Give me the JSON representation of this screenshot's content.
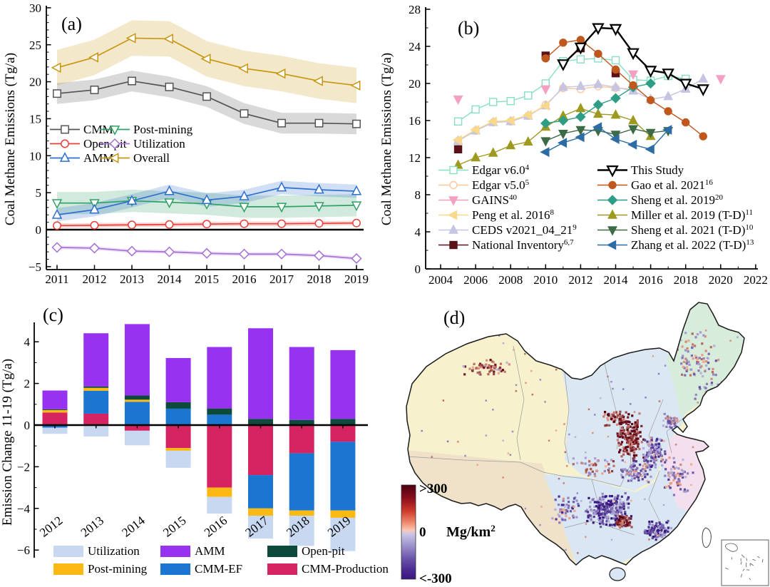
{
  "figure": {
    "panel_labels": [
      "(a)",
      "(b)",
      "(c)",
      "(d)"
    ]
  },
  "chart_data": [
    {
      "panel": "(a)",
      "type": "line",
      "ylabel": "Coal Methane Emissions (Tg/a)",
      "x": [
        2011,
        2012,
        2013,
        2014,
        2015,
        2016,
        2017,
        2018,
        2019
      ],
      "yticks": [
        30,
        25,
        20,
        15,
        10,
        5,
        0,
        -5
      ],
      "ylim": [
        -5,
        30
      ],
      "legend_rows": [
        [
          "CMM",
          "Post-mining"
        ],
        [
          "Open-pit",
          "Utilization"
        ],
        [
          "AMM",
          "Overall"
        ]
      ],
      "series": [
        {
          "name": "Overall",
          "color": "#c8950f",
          "marker": "triangle-left",
          "band": 2.4,
          "values": [
            21.9,
            23.3,
            25.9,
            25.8,
            23.1,
            21.8,
            21.1,
            20.1,
            19.5
          ]
        },
        {
          "name": "CMM",
          "color": "#545454",
          "marker": "square",
          "band": 1.4,
          "values": [
            18.4,
            18.9,
            20.1,
            19.3,
            18.0,
            15.7,
            14.4,
            14.4,
            14.3
          ]
        },
        {
          "name": "Post-mining",
          "color": "#2ea164",
          "marker": "triangle-down",
          "band": 1.5,
          "values": [
            3.6,
            3.6,
            3.9,
            3.7,
            3.5,
            3.1,
            3.1,
            3.2,
            3.3
          ]
        },
        {
          "name": "AMM",
          "color": "#2f6fce",
          "marker": "triangle-up",
          "band": 0.9,
          "values": [
            2.0,
            2.7,
            3.9,
            5.2,
            4.0,
            4.5,
            5.7,
            5.4,
            5.2
          ]
        },
        {
          "name": "Open-pit",
          "color": "#e8403a",
          "marker": "circle",
          "band": 0.3,
          "values": [
            0.55,
            0.6,
            0.65,
            0.7,
            0.75,
            0.8,
            0.8,
            0.85,
            0.9
          ]
        },
        {
          "name": "Utilization",
          "color": "#a66fd5",
          "marker": "diamond",
          "band": 0.25,
          "values": [
            -2.4,
            -2.5,
            -2.9,
            -3.0,
            -3.2,
            -3.3,
            -3.3,
            -3.5,
            -3.9
          ]
        }
      ]
    },
    {
      "panel": "(b)",
      "type": "line",
      "ylabel": "Coal Methane Emissions (Tg/a)",
      "xticks": [
        2004,
        2006,
        2008,
        2010,
        2012,
        2014,
        2016,
        2018,
        2020,
        2022
      ],
      "yticks": [
        0,
        4,
        8,
        12,
        16,
        20,
        24,
        28
      ],
      "ylim": [
        0,
        28
      ],
      "legend_columns": [
        [
          "Edgar v6.0",
          "Edgar v5.0",
          "GAINS",
          "Peng et al. 2016",
          "CEDS v2021_04_21",
          "National Inventory"
        ],
        [
          "This Study",
          "Gao et al. 2021",
          "Sheng et al. 2019",
          "Miller et al. 2019 (T-D)",
          "Sheng et al. 2021 (T-D)",
          "Zhang et al. 2022 (T-D)"
        ]
      ],
      "series": [
        {
          "name": "Edgar v5.0",
          "sup": "5",
          "color": "#ffc79a",
          "marker": "circle",
          "filled": false,
          "x": [
            2005,
            2006,
            2007,
            2008,
            2009,
            2010,
            2011,
            2012,
            2013,
            2014,
            2015
          ],
          "y": [
            13.8,
            14.9,
            15.8,
            15.9,
            16.5,
            17.7,
            19.5,
            19.4,
            19.7,
            19.5,
            19.4
          ]
        },
        {
          "name": "CEDS v2021_04_21",
          "sup": "9",
          "color": "#c6c4e3",
          "marker": "triangle-up",
          "filled": true,
          "x": [
            2005,
            2006,
            2007,
            2008,
            2009,
            2010,
            2011,
            2012,
            2013,
            2014,
            2015,
            2016,
            2017,
            2018,
            2019
          ],
          "y": [
            13.8,
            14.9,
            15.8,
            15.9,
            16.5,
            17.6,
            19.6,
            19.7,
            19.9,
            19.6,
            19.2,
            18.3,
            18.6,
            19.4,
            20.5
          ]
        },
        {
          "name": "Peng et al. 2016",
          "sup": "8",
          "color": "#f8d98c",
          "marker": "triangle-left",
          "filled": true,
          "x": [
            2005,
            2006,
            2007,
            2008,
            2009,
            2010
          ],
          "y": [
            13.9,
            15.0,
            15.9,
            16.0,
            16.6,
            17.6
          ]
        },
        {
          "name": "Edgar v6.0",
          "sup": "4",
          "color": "#86dfc0",
          "marker": "square",
          "filled": false,
          "x": [
            2005,
            2006,
            2007,
            2008,
            2009,
            2010,
            2011,
            2012,
            2013,
            2014,
            2015,
            2016,
            2017,
            2018
          ],
          "y": [
            15.9,
            17.2,
            18.0,
            18.1,
            18.7,
            20.0,
            22.4,
            22.6,
            22.7,
            22.5,
            20.4,
            20.3,
            20.8,
            20.5
          ]
        },
        {
          "name": "GAINS",
          "sup": "40",
          "color": "#f4a0c3",
          "marker": "triangle-down",
          "filled": true,
          "line": false,
          "x": [
            2005,
            2010,
            2015,
            2020
          ],
          "y": [
            18.3,
            19.4,
            21.0,
            20.5
          ]
        },
        {
          "name": "National Inventory",
          "sup": "6,7",
          "color": "#5a1118",
          "marker": "square",
          "filled": true,
          "line": false,
          "x": [
            2005,
            2010,
            2012,
            2014
          ],
          "y": [
            12.9,
            23.0,
            23.8,
            21.1
          ]
        },
        {
          "name": "Miller et al. 2019 (T-D)",
          "sup": "11",
          "color": "#9d9a1f",
          "marker": "triangle-up",
          "filled": true,
          "x": [
            2005,
            2006,
            2007,
            2008,
            2009,
            2010,
            2011,
            2012,
            2013,
            2014,
            2015,
            2016
          ],
          "y": [
            11.2,
            12.0,
            12.5,
            13.3,
            13.7,
            15.3,
            16.5,
            17.3,
            16.7,
            16.6,
            16.0,
            14.3
          ]
        },
        {
          "name": "Sheng et al. 2019",
          "sup": "20",
          "color": "#2e9d85",
          "marker": "diamond",
          "filled": true,
          "x": [
            2010,
            2011,
            2012,
            2013,
            2014,
            2015,
            2016
          ],
          "y": [
            15.7,
            16.0,
            16.4,
            17.7,
            18.4,
            19.6,
            20.0
          ]
        },
        {
          "name": "Sheng et al. 2021 (T-D)",
          "sup": "10",
          "color": "#3c6b45",
          "marker": "triangle-down",
          "filled": true,
          "x": [
            2010,
            2011,
            2012,
            2013,
            2014,
            2015,
            2016,
            2017
          ],
          "y": [
            13.8,
            14.6,
            15.0,
            14.9,
            14.5,
            15.1,
            14.7,
            14.9
          ]
        },
        {
          "name": "Zhang et al. 2022 (T-D)",
          "sup": "13",
          "color": "#2d6da3",
          "marker": "triangle-left",
          "filled": true,
          "x": [
            2010,
            2011,
            2012,
            2013,
            2014,
            2015,
            2016,
            2017
          ],
          "y": [
            12.6,
            13.6,
            14.2,
            15.3,
            14.0,
            13.4,
            12.9,
            15.0
          ]
        },
        {
          "name": "Gao et al. 2021",
          "sup": "16",
          "color": "#c0571d",
          "marker": "circle",
          "filled": true,
          "x": [
            2010,
            2011,
            2012,
            2013,
            2014,
            2015,
            2016,
            2017,
            2018,
            2019
          ],
          "y": [
            22.7,
            24.4,
            24.7,
            23.2,
            21.5,
            19.8,
            18.2,
            17.0,
            15.8,
            14.3
          ]
        },
        {
          "name": "This Study",
          "sup": "",
          "color": "#000000",
          "marker": "triangle-down",
          "filled": false,
          "thick": true,
          "x": [
            2011,
            2012,
            2013,
            2014,
            2015,
            2016,
            2017,
            2018,
            2019
          ],
          "y": [
            22.1,
            23.9,
            26.0,
            25.9,
            23.3,
            21.4,
            21.1,
            20.0,
            19.4
          ]
        }
      ]
    },
    {
      "panel": "(c)",
      "type": "bar-stacked",
      "ylabel": "Emission Change 11-19 (Tg/a)",
      "categories": [
        2012,
        2013,
        2014,
        2015,
        2016,
        2017,
        2018,
        2019
      ],
      "yticks": [
        4,
        2,
        0,
        -2,
        -4,
        -6
      ],
      "legend_rows": [
        [
          "Utilization",
          "AMM",
          "Open-pit"
        ],
        [
          "Post-mining",
          "CMM-EF",
          "CMM-Production"
        ]
      ],
      "series": [
        {
          "name": "Utilization",
          "color": "#c9d8f1",
          "values": [
            -0.3,
            -0.55,
            -0.7,
            -0.82,
            -0.8,
            -1.1,
            -1.45,
            -1.6
          ]
        },
        {
          "name": "Post-mining",
          "color": "#fcb813",
          "values": [
            0.12,
            0.14,
            0.1,
            -0.13,
            -0.45,
            -0.35,
            -0.25,
            -0.35
          ]
        },
        {
          "name": "AMM",
          "color": "#9733f0",
          "values": [
            0.9,
            2.55,
            3.43,
            2.12,
            2.95,
            4.35,
            3.5,
            3.3
          ]
        },
        {
          "name": "CMM-EF",
          "color": "#1b76d2",
          "values": [
            -0.12,
            1.1,
            1.12,
            0.79,
            0.5,
            -1.6,
            -2.75,
            -3.3
          ]
        },
        {
          "name": "Open-pit",
          "color": "#0d4a3c",
          "values": [
            0.04,
            0.07,
            0.2,
            0.31,
            0.3,
            0.3,
            0.25,
            0.3
          ]
        },
        {
          "name": "CMM-Production",
          "color": "#d62463",
          "values": [
            0.6,
            0.55,
            -0.27,
            -1.1,
            -3.0,
            -2.4,
            -1.35,
            -0.8
          ]
        }
      ]
    },
    {
      "panel": "(d)",
      "type": "heatmap",
      "colorbar": {
        "top_label": ">300",
        "mid_label": "0",
        "bottom_label": "<-300",
        "unit_base": "Mg/km",
        "unit_sup": "2",
        "top_color": "#4a0010",
        "mid_pos_color": "#fbc7b4",
        "mid_neg_color": "#ccc6e6",
        "bottom_color": "#3a1680"
      }
    }
  ]
}
